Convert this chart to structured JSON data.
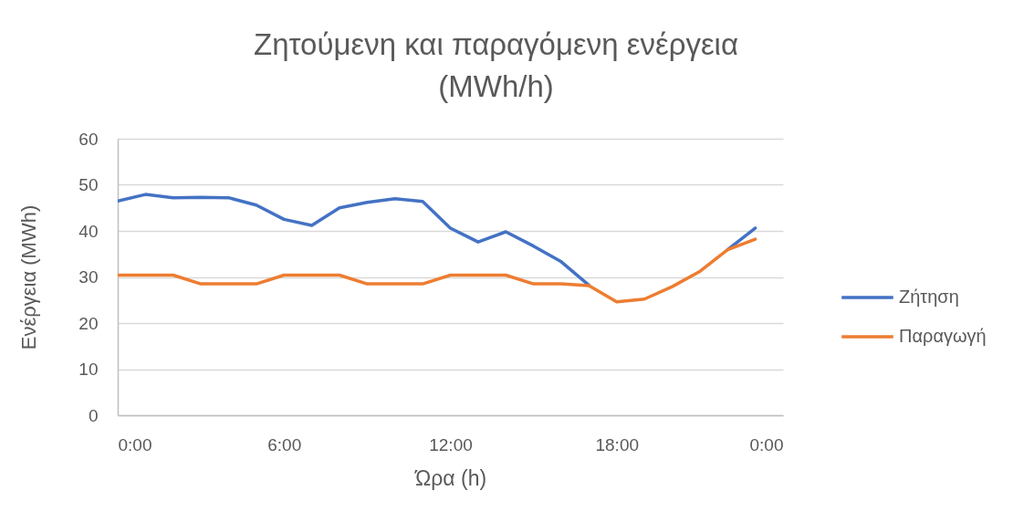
{
  "chart_data": {
    "type": "line",
    "title": "Ζητούμενη και παραγόμενη ενέργεια (MWh/h)",
    "xlabel": "Ώρα (h)",
    "ylabel": "Ενέργεια (MWh)",
    "x": [
      0,
      1,
      2,
      3,
      4,
      5,
      6,
      7,
      8,
      9,
      10,
      11,
      12,
      13,
      14,
      15,
      16,
      17,
      18,
      19,
      20,
      21,
      22,
      23
    ],
    "series": [
      {
        "name": "Ζήτηση",
        "color": "#4472c4",
        "values": [
          46.5,
          47.9,
          47.2,
          47.3,
          47.2,
          45.6,
          42.5,
          41.2,
          45.0,
          46.2,
          47.0,
          46.4,
          40.6,
          37.6,
          39.8,
          36.7,
          33.3,
          28.2,
          null,
          null,
          null,
          null,
          35.9,
          40.6
        ]
      },
      {
        "name": "Παραγωγή",
        "color": "#ed7d31",
        "values": [
          30.4,
          30.4,
          30.4,
          28.5,
          28.5,
          28.5,
          30.4,
          30.4,
          30.4,
          28.5,
          28.5,
          28.5,
          30.4,
          30.4,
          30.4,
          28.5,
          28.5,
          28.1,
          24.6,
          25.2,
          27.9,
          31.2,
          35.9,
          38.2
        ]
      }
    ],
    "xlim": [
      0,
      24
    ],
    "xticks": [
      {
        "value": 0,
        "label": "0:00"
      },
      {
        "value": 6,
        "label": "6:00"
      },
      {
        "value": 12,
        "label": "12:00"
      },
      {
        "value": 18,
        "label": "18:00"
      },
      {
        "value": 24,
        "label": "0:00"
      }
    ],
    "ylim": [
      0,
      60
    ],
    "yticks": [
      0,
      10,
      20,
      30,
      40,
      50,
      60
    ],
    "grid": "y",
    "legend": "right",
    "line_style": "solid"
  }
}
